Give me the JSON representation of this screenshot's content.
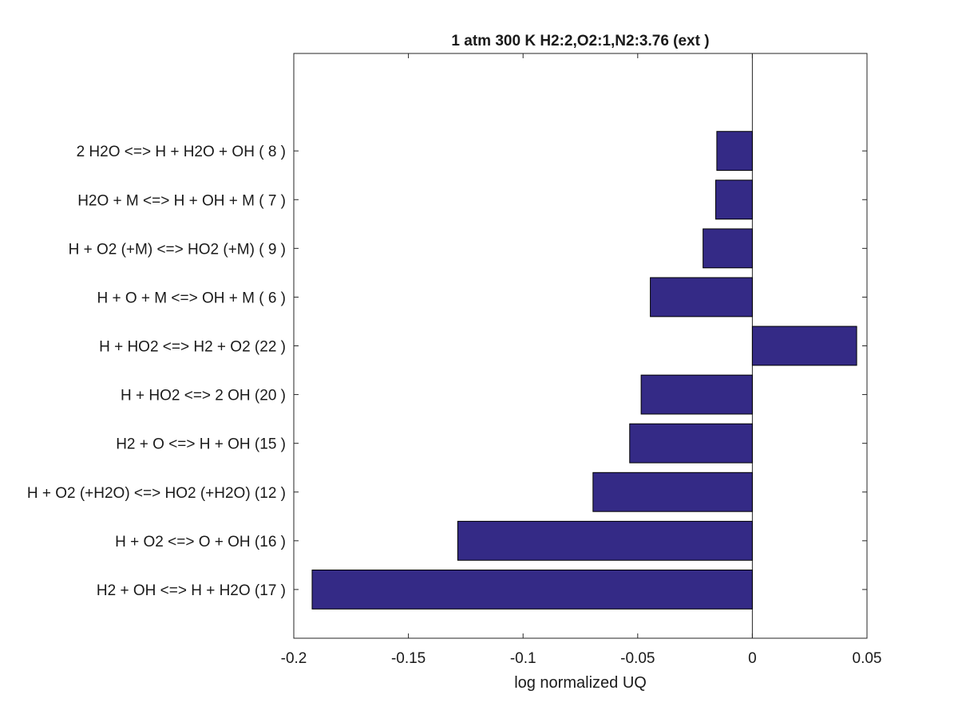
{
  "chart_data": {
    "type": "bar",
    "orientation": "horizontal",
    "title": "1 atm 300 K H2:2,O2:1,N2:3.76 (ext )",
    "xlabel": "log normalized UQ",
    "ylabel": "",
    "xlim": [
      -0.2,
      0.05
    ],
    "xticks": [
      -0.2,
      -0.15,
      -0.1,
      -0.05,
      0,
      0.05
    ],
    "xtick_labels": [
      "-0.2",
      "-0.15",
      "-0.1",
      "-0.05",
      "0",
      "0.05"
    ],
    "grid": false,
    "bar_color": "#342a86",
    "categories": [
      "2 H2O <=> H + H2O + OH ( 8 )",
      "H2O + M <=> H + OH + M ( 7 )",
      "H + O2 (+M) <=> HO2 (+M) ( 9 )",
      "H + O + M <=> OH + M ( 6 )",
      "H + HO2 <=> H2 + O2 (22 )",
      "H + HO2 <=> 2 OH (20 )",
      "H2 + O <=> H + OH (15 )",
      "H + O2 (+H2O) <=> HO2 (+H2O) (12 )",
      "H + O2 <=> O + OH (16 )",
      "H2 + OH <=> H + H2O (17 )"
    ],
    "values": [
      -0.0155,
      -0.016,
      -0.0215,
      -0.0445,
      0.0455,
      -0.0485,
      -0.0535,
      -0.0695,
      -0.1285,
      -0.192
    ]
  }
}
